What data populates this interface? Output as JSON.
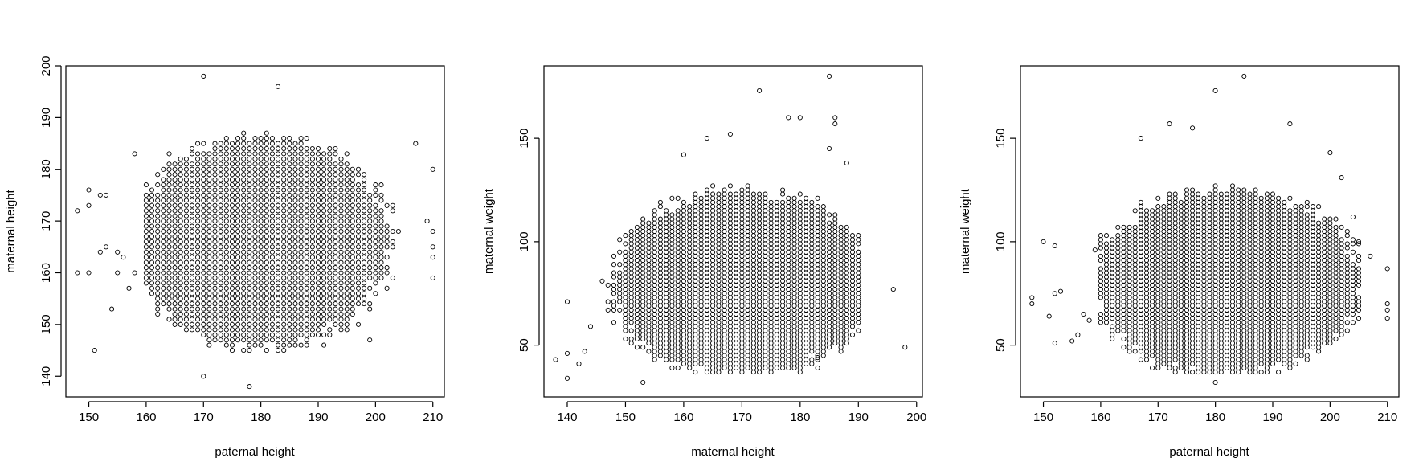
{
  "chart_data": [
    {
      "type": "scatter",
      "title": "",
      "xlabel": "paternal height",
      "ylabel": "maternal height",
      "xlim": [
        146,
        212
      ],
      "ylim": [
        136,
        200
      ],
      "xticks": [
        150,
        160,
        170,
        180,
        190,
        200,
        210
      ],
      "yticks": [
        140,
        150,
        160,
        170,
        180,
        190,
        200
      ],
      "grid": false,
      "core": {
        "x": [
          160,
          205
        ],
        "y": [
          145,
          187
        ],
        "step_x": 1,
        "step_y": 1,
        "center": [
          180,
          166
        ],
        "radii": [
          24,
          22
        ]
      },
      "outliers": [
        [
          148,
          172
        ],
        [
          148,
          160
        ],
        [
          150,
          176
        ],
        [
          150,
          173
        ],
        [
          150,
          160
        ],
        [
          151,
          145
        ],
        [
          152,
          175
        ],
        [
          153,
          175
        ],
        [
          152,
          164
        ],
        [
          153,
          165
        ],
        [
          154,
          153
        ],
        [
          155,
          164
        ],
        [
          155,
          160
        ],
        [
          156,
          163
        ],
        [
          157,
          157
        ],
        [
          158,
          183
        ],
        [
          158,
          160
        ],
        [
          170,
          198
        ],
        [
          170,
          140
        ],
        [
          183,
          196
        ],
        [
          178,
          138
        ],
        [
          199,
          147
        ],
        [
          207,
          185
        ],
        [
          210,
          180
        ],
        [
          210,
          168
        ],
        [
          210,
          165
        ],
        [
          210,
          163
        ],
        [
          210,
          159
        ],
        [
          209,
          170
        ]
      ]
    },
    {
      "type": "scatter",
      "title": "",
      "xlabel": "maternal height",
      "ylabel": "maternal weight",
      "xlim": [
        136,
        201
      ],
      "ylim": [
        25,
        185
      ],
      "xticks": [
        140,
        150,
        160,
        170,
        180,
        190,
        200
      ],
      "yticks": [
        50,
        100,
        150
      ],
      "grid": false,
      "core": {
        "x": [
          145,
          190
        ],
        "y": [
          37,
          128
        ],
        "step_x": 1,
        "step_y": 2,
        "center": [
          170,
          80
        ],
        "radii": [
          24,
          48
        ]
      },
      "outliers": [
        [
          138,
          43
        ],
        [
          140,
          71
        ],
        [
          140,
          46
        ],
        [
          140,
          34
        ],
        [
          142,
          41
        ],
        [
          143,
          47
        ],
        [
          144,
          59
        ],
        [
          153,
          32
        ],
        [
          185,
          180
        ],
        [
          173,
          173
        ],
        [
          196,
          77
        ],
        [
          198,
          49
        ],
        [
          190,
          95
        ],
        [
          190,
          83
        ],
        [
          190,
          65
        ],
        [
          188,
          138
        ],
        [
          186,
          160
        ],
        [
          186,
          157
        ],
        [
          185,
          145
        ],
        [
          160,
          142
        ],
        [
          164,
          150
        ],
        [
          168,
          152
        ],
        [
          178,
          160
        ],
        [
          180,
          160
        ],
        [
          183,
          44
        ]
      ]
    },
    {
      "type": "scatter",
      "title": "",
      "xlabel": "paternal height",
      "ylabel": "maternal weight",
      "xlim": [
        146,
        212
      ],
      "ylim": [
        25,
        185
      ],
      "xticks": [
        150,
        160,
        170,
        180,
        190,
        200,
        210
      ],
      "yticks": [
        50,
        100,
        150
      ],
      "grid": false,
      "core": {
        "x": [
          160,
          205
        ],
        "y": [
          37,
          128
        ],
        "step_x": 1,
        "step_y": 2,
        "center": [
          182,
          80
        ],
        "radii": [
          25,
          48
        ]
      },
      "outliers": [
        [
          148,
          73
        ],
        [
          148,
          70
        ],
        [
          150,
          100
        ],
        [
          151,
          64
        ],
        [
          152,
          98
        ],
        [
          152,
          75
        ],
        [
          153,
          76
        ],
        [
          152,
          51
        ],
        [
          155,
          52
        ],
        [
          156,
          55
        ],
        [
          157,
          65
        ],
        [
          158,
          62
        ],
        [
          159,
          96
        ],
        [
          167,
          150
        ],
        [
          180,
          173
        ],
        [
          185,
          180
        ],
        [
          193,
          157
        ],
        [
          176,
          155
        ],
        [
          172,
          157
        ],
        [
          180,
          32
        ],
        [
          210,
          87
        ],
        [
          210,
          70
        ],
        [
          210,
          67
        ],
        [
          210,
          63
        ],
        [
          207,
          93
        ],
        [
          205,
          100
        ],
        [
          204,
          112
        ],
        [
          202,
          131
        ],
        [
          200,
          143
        ]
      ]
    }
  ]
}
